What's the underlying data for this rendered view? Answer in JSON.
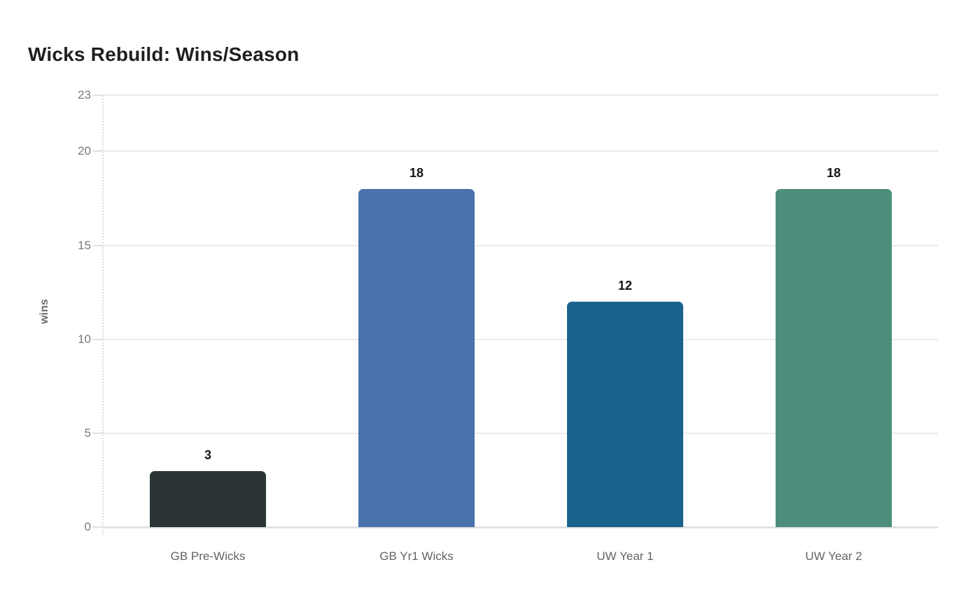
{
  "chart_data": {
    "type": "bar",
    "title": "Wicks Rebuild: Wins/Season",
    "ylabel": "wins",
    "xlabel": "",
    "categories": [
      "GB Pre-Wicks",
      "GB Yr1 Wicks",
      "UW Year 1",
      "UW Year 2"
    ],
    "values": [
      3,
      18,
      12,
      18
    ],
    "data_labels": [
      "3",
      "18",
      "12",
      "18"
    ],
    "bar_colors": [
      "#2b3538",
      "#4a72ab",
      "#1a628e",
      "#4c8e7b"
    ],
    "yticks": [
      0,
      5,
      10,
      15,
      20,
      23
    ],
    "ylim": [
      0,
      23
    ],
    "grid": true,
    "legend": false
  },
  "style": {
    "background": "#ffffff",
    "title_color": "#1f1f1f",
    "grid_color": "#ebebeb",
    "zero_line_color": "#e2e2e2",
    "axis_line_color": "#dcdcdc",
    "tick_label_color": "#7a7a7a",
    "category_label_color": "#636363",
    "value_label_color": "#161616",
    "y_axis_title_color": "#6b6b6b"
  }
}
